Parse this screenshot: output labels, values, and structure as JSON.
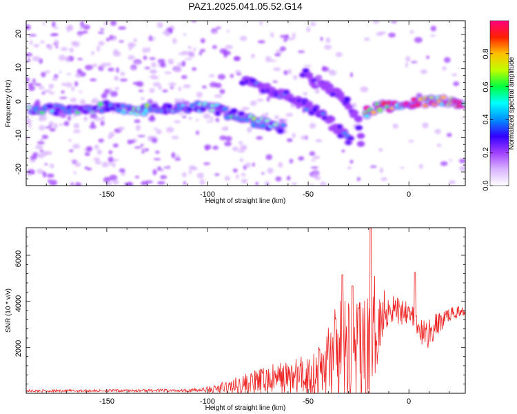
{
  "chart_data": [
    {
      "type": "heatmap",
      "title": "PAZ1.2025.041.05.52.G14",
      "xlabel": "Height of straight line (km)",
      "ylabel": "Frequency (Hz)",
      "xlim": [
        -190,
        28
      ],
      "ylim": [
        -25,
        25
      ],
      "xticks": [
        "-150",
        "-100",
        "-50",
        "0"
      ],
      "yticks": [
        "20",
        "10",
        "0",
        "-10",
        "-20"
      ],
      "colorbar": {
        "label": "Normalized spectral amplitude",
        "range": [
          0,
          1
        ],
        "ticks": [
          "0.0",
          "0.2",
          "0.4",
          "0.6",
          "0.8"
        ],
        "colors": [
          "#ffffff",
          "#d9b3ff",
          "#a040ff",
          "#3300ff",
          "#0090ff",
          "#00ffff",
          "#00ff40",
          "#c0ff00",
          "#ffc000",
          "#ff2000",
          "#ff0080"
        ]
      },
      "ridges": [
        {
          "name": "main",
          "points": [
            [
              -188,
              -2
            ],
            [
              -170,
              -2
            ],
            [
              -150,
              -1
            ],
            [
              -140,
              -2
            ],
            [
              -120,
              -2
            ],
            [
              -100,
              -1
            ],
            [
              -90,
              -3
            ],
            [
              -80,
              -5
            ],
            [
              -72,
              -6
            ],
            [
              -65,
              -7
            ],
            [
              -62,
              -8
            ]
          ],
          "amplitude": 0.45
        },
        {
          "name": "upper",
          "points": [
            [
              -82,
              7
            ],
            [
              -70,
              4
            ],
            [
              -60,
              2
            ],
            [
              -50,
              -1
            ],
            [
              -42,
              -4
            ],
            [
              -35,
              -8
            ],
            [
              -28,
              -12
            ]
          ],
          "amplitude": 0.3
        },
        {
          "name": "mid",
          "points": [
            [
              -52,
              9
            ],
            [
              -45,
              6
            ],
            [
              -38,
              4
            ],
            [
              -30,
              0
            ],
            [
              -25,
              -6
            ],
            [
              -23,
              -15
            ]
          ],
          "amplitude": 0.25
        },
        {
          "name": "tail",
          "points": [
            [
              -22,
              -3
            ],
            [
              -15,
              -1
            ],
            [
              -5,
              -1
            ],
            [
              5,
              0
            ],
            [
              15,
              1
            ],
            [
              28,
              0
            ]
          ],
          "amplitude": 0.85
        }
      ]
    },
    {
      "type": "line",
      "xlabel": "Height of straight line (km)",
      "ylabel": "SNR (10 * v/v)",
      "xlim": [
        -190,
        28
      ],
      "ylim": [
        0,
        7400
      ],
      "xticks": [
        "-150",
        "-100",
        "-50",
        "0"
      ],
      "yticks": [
        "6000",
        "4000",
        "2000"
      ],
      "color": "#ee2222",
      "envelope": {
        "x": [
          -190,
          -150,
          -110,
          -100,
          -90,
          -80,
          -70,
          -60,
          -50,
          -45,
          -40,
          -35,
          -30,
          -25,
          -20,
          -18,
          -15,
          -10,
          -5,
          0,
          5,
          10,
          15,
          20,
          28
        ],
        "base": [
          100,
          110,
          120,
          140,
          220,
          380,
          520,
          620,
          700,
          800,
          1200,
          1400,
          1600,
          1500,
          1300,
          2000,
          3200,
          3800,
          3600,
          3800,
          2600,
          2600,
          3100,
          3500,
          3700
        ],
        "amp": [
          60,
          60,
          70,
          150,
          350,
          500,
          650,
          800,
          1000,
          1300,
          1900,
          2400,
          2700,
          2500,
          2800,
          3200,
          1400,
          900,
          700,
          700,
          600,
          700,
          500,
          300,
          200
        ]
      },
      "peaks": [
        [
          -19,
          7400
        ],
        [
          -33,
          5300
        ],
        [
          -28,
          4800
        ],
        [
          3,
          5400
        ],
        [
          -25,
          3800
        ]
      ]
    }
  ]
}
